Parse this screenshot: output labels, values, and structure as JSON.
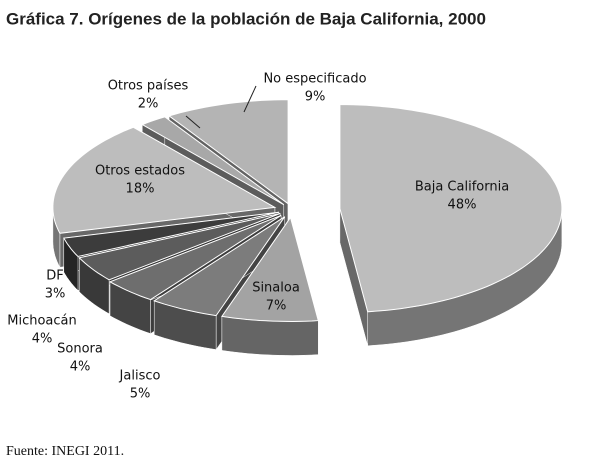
{
  "chart_data": {
    "type": "pie3d",
    "title": "Gráfica 7. Orígenes de la población de Baja California, 2000",
    "categories": [
      "Baja California",
      "Sinaloa",
      "Jalisco",
      "Sonora",
      "Michoacán",
      "DF",
      "Otros estados",
      "Otros países",
      "No especificado"
    ],
    "values": [
      48,
      7,
      5,
      4,
      4,
      3,
      18,
      2,
      9
    ],
    "value_labels": [
      "48%",
      "7%",
      "5%",
      "4%",
      "4%",
      "3%",
      "18%",
      "2%",
      "9%"
    ],
    "colors": [
      "#bdbdbd",
      "#a3a3a3",
      "#7c7c7c",
      "#6e6e6e",
      "#5c5c5c",
      "#3c3c3c",
      "#bdbdbd",
      "#a8a8a8",
      "#b4b4b4"
    ],
    "source": "Fuente: INEGI 2011."
  }
}
